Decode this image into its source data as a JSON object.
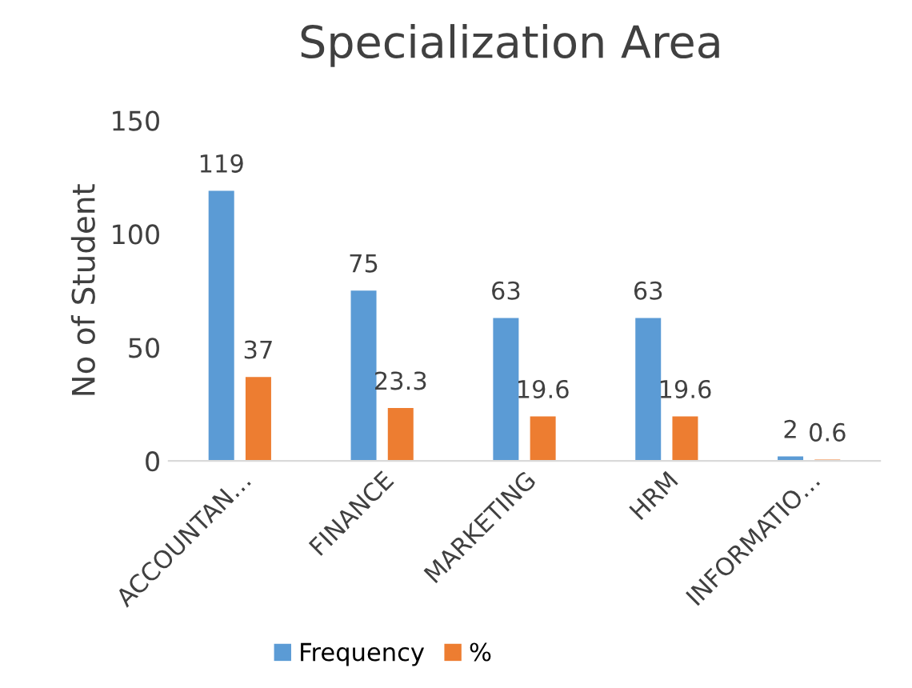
{
  "chart_data": {
    "type": "bar",
    "title": "Specialization Area",
    "ylabel": "No of Student",
    "categories": [
      "ACCOUNTAN…",
      "FINANCE",
      "MARKETING",
      "HRM",
      "INFORMATIO…"
    ],
    "series": [
      {
        "name": "Frequency",
        "color": "#5b9bd5",
        "values": [
          119,
          75,
          63,
          63,
          2
        ]
      },
      {
        "name": "%",
        "color": "#ed7d31",
        "values": [
          37,
          23.3,
          19.6,
          19.6,
          0.6
        ]
      }
    ],
    "ylim": [
      0,
      150
    ],
    "yticks": [
      0,
      50,
      100,
      150
    ],
    "grid": false,
    "legend": "bottom",
    "data_labels": true
  }
}
